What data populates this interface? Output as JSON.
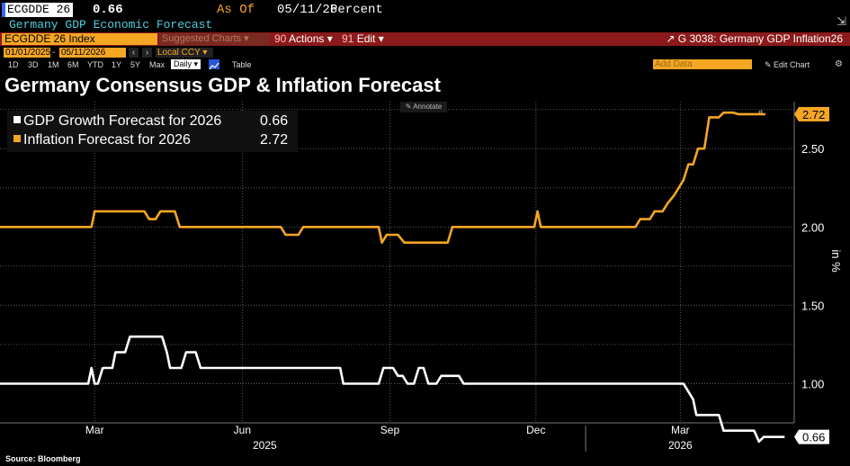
{
  "header": {
    "ticker": "ECGDDE 26",
    "value": "0.66",
    "as_of_label": "As Of",
    "as_of_date": "05/11/26",
    "unit": "Percent",
    "description": "Germany GDP Economic Forecast"
  },
  "toolbar": {
    "index_label": "ECGDDE 26 Index",
    "suggested_charts": "Suggested Charts",
    "actions": "Actions",
    "edit": "Edit",
    "right_title": "G 3038: Germany GDP Inflation26",
    "start_date": "01/01/2025",
    "end_date": "05/11/2026",
    "currency": "Local CCY",
    "add_data": "Add Data",
    "edit_chart": "Edit Chart",
    "periods": [
      "1D",
      "3D",
      "1M",
      "6M",
      "YTD",
      "1Y",
      "5Y",
      "Max"
    ],
    "frequency": "Daily",
    "table": "Table"
  },
  "icons": {
    "chart_type": "line-chart-icon",
    "open_link": "external-link-icon",
    "settings": "gear-icon",
    "collapse": "collapse-icon",
    "annotate": "pencil-icon"
  },
  "annotate_label": "Annotate",
  "source": "Source: Bloomberg",
  "colors": {
    "gdp": "#ffffff",
    "inflation": "#f5a623",
    "toolbar_red": "#8b1a1a",
    "accent_orange": "#f5a623",
    "description_cyan": "#4fd0e0"
  },
  "chart_data": {
    "type": "line",
    "title": "Germany Consensus GDP & Inflation Forecast",
    "ylabel": "%",
    "ylim": [
      0.75,
      2.8
    ],
    "yticks": [
      "1.00",
      "1.50",
      "2.00",
      "2.50"
    ],
    "xlim": [
      "2025-01-01",
      "2026-05-11"
    ],
    "x_ticks": [
      {
        "date": "2025-03-01",
        "label": "Mar"
      },
      {
        "date": "2025-06-01",
        "label": "Jun"
      },
      {
        "date": "2025-09-01",
        "label": "Sep"
      },
      {
        "date": "2025-12-01",
        "label": "Dec"
      },
      {
        "date": "2026-03-01",
        "label": "Mar"
      }
    ],
    "year_labels": [
      {
        "date": "2025-06-15",
        "label": "2025"
      },
      {
        "date": "2026-03-01",
        "label": "2026"
      }
    ],
    "grid": true,
    "legend_position": "top-left",
    "series": [
      {
        "name": "GDP Growth Forecast for 2026",
        "last_value": "0.66",
        "color": "#ffffff",
        "points": [
          [
            "2025-01-01",
            1.0
          ],
          [
            "2025-02-25",
            1.0
          ],
          [
            "2025-02-27",
            1.1
          ],
          [
            "2025-03-01",
            1.0
          ],
          [
            "2025-03-03",
            1.0
          ],
          [
            "2025-03-06",
            1.1
          ],
          [
            "2025-03-12",
            1.1
          ],
          [
            "2025-03-14",
            1.2
          ],
          [
            "2025-03-20",
            1.2
          ],
          [
            "2025-03-23",
            1.3
          ],
          [
            "2025-04-12",
            1.3
          ],
          [
            "2025-04-15",
            1.2
          ],
          [
            "2025-04-17",
            1.1
          ],
          [
            "2025-04-24",
            1.1
          ],
          [
            "2025-04-27",
            1.2
          ],
          [
            "2025-05-03",
            1.2
          ],
          [
            "2025-05-06",
            1.1
          ],
          [
            "2025-08-01",
            1.1
          ],
          [
            "2025-08-03",
            1.0
          ],
          [
            "2025-08-25",
            1.0
          ],
          [
            "2025-08-28",
            1.1
          ],
          [
            "2025-09-03",
            1.1
          ],
          [
            "2025-09-06",
            1.05
          ],
          [
            "2025-09-09",
            1.05
          ],
          [
            "2025-09-12",
            1.0
          ],
          [
            "2025-09-16",
            1.0
          ],
          [
            "2025-09-19",
            1.1
          ],
          [
            "2025-09-22",
            1.1
          ],
          [
            "2025-09-25",
            1.0
          ],
          [
            "2025-09-30",
            1.0
          ],
          [
            "2025-10-03",
            1.05
          ],
          [
            "2025-10-14",
            1.05
          ],
          [
            "2025-10-17",
            1.0
          ],
          [
            "2026-03-03",
            1.0
          ],
          [
            "2026-03-09",
            0.9
          ],
          [
            "2026-03-11",
            0.8
          ],
          [
            "2026-03-25",
            0.8
          ],
          [
            "2026-03-28",
            0.7
          ],
          [
            "2026-04-16",
            0.7
          ],
          [
            "2026-04-19",
            0.63
          ],
          [
            "2026-04-22",
            0.66
          ],
          [
            "2026-05-05",
            0.66
          ]
        ]
      },
      {
        "name": "Inflation Forecast for 2026",
        "last_value": "2.72",
        "color": "#f5a623",
        "points": [
          [
            "2025-01-01",
            2.0
          ],
          [
            "2025-02-27",
            2.0
          ],
          [
            "2025-03-01",
            2.1
          ],
          [
            "2025-04-01",
            2.1
          ],
          [
            "2025-04-04",
            2.05
          ],
          [
            "2025-04-08",
            2.05
          ],
          [
            "2025-04-11",
            2.1
          ],
          [
            "2025-04-20",
            2.1
          ],
          [
            "2025-04-23",
            2.0
          ],
          [
            "2025-06-25",
            2.0
          ],
          [
            "2025-06-28",
            1.95
          ],
          [
            "2025-07-06",
            1.95
          ],
          [
            "2025-07-09",
            2.0
          ],
          [
            "2025-08-25",
            2.0
          ],
          [
            "2025-08-27",
            1.9
          ],
          [
            "2025-08-30",
            1.95
          ],
          [
            "2025-09-06",
            1.95
          ],
          [
            "2025-09-10",
            1.9
          ],
          [
            "2025-10-07",
            1.9
          ],
          [
            "2025-10-10",
            2.0
          ],
          [
            "2025-11-30",
            2.0
          ],
          [
            "2025-12-02",
            2.1
          ],
          [
            "2025-12-04",
            2.0
          ],
          [
            "2026-02-01",
            2.0
          ],
          [
            "2026-02-04",
            2.05
          ],
          [
            "2026-02-10",
            2.05
          ],
          [
            "2026-02-13",
            2.1
          ],
          [
            "2026-02-18",
            2.1
          ],
          [
            "2026-02-21",
            2.15
          ],
          [
            "2026-02-25",
            2.2
          ],
          [
            "2026-02-28",
            2.25
          ],
          [
            "2026-03-03",
            2.3
          ],
          [
            "2026-03-06",
            2.4
          ],
          [
            "2026-03-09",
            2.4
          ],
          [
            "2026-03-12",
            2.5
          ],
          [
            "2026-03-16",
            2.5
          ],
          [
            "2026-03-19",
            2.7
          ],
          [
            "2026-03-25",
            2.7
          ],
          [
            "2026-03-28",
            2.73
          ],
          [
            "2026-04-03",
            2.73
          ],
          [
            "2026-04-06",
            2.72
          ],
          [
            "2026-04-23",
            2.72
          ]
        ]
      }
    ]
  }
}
